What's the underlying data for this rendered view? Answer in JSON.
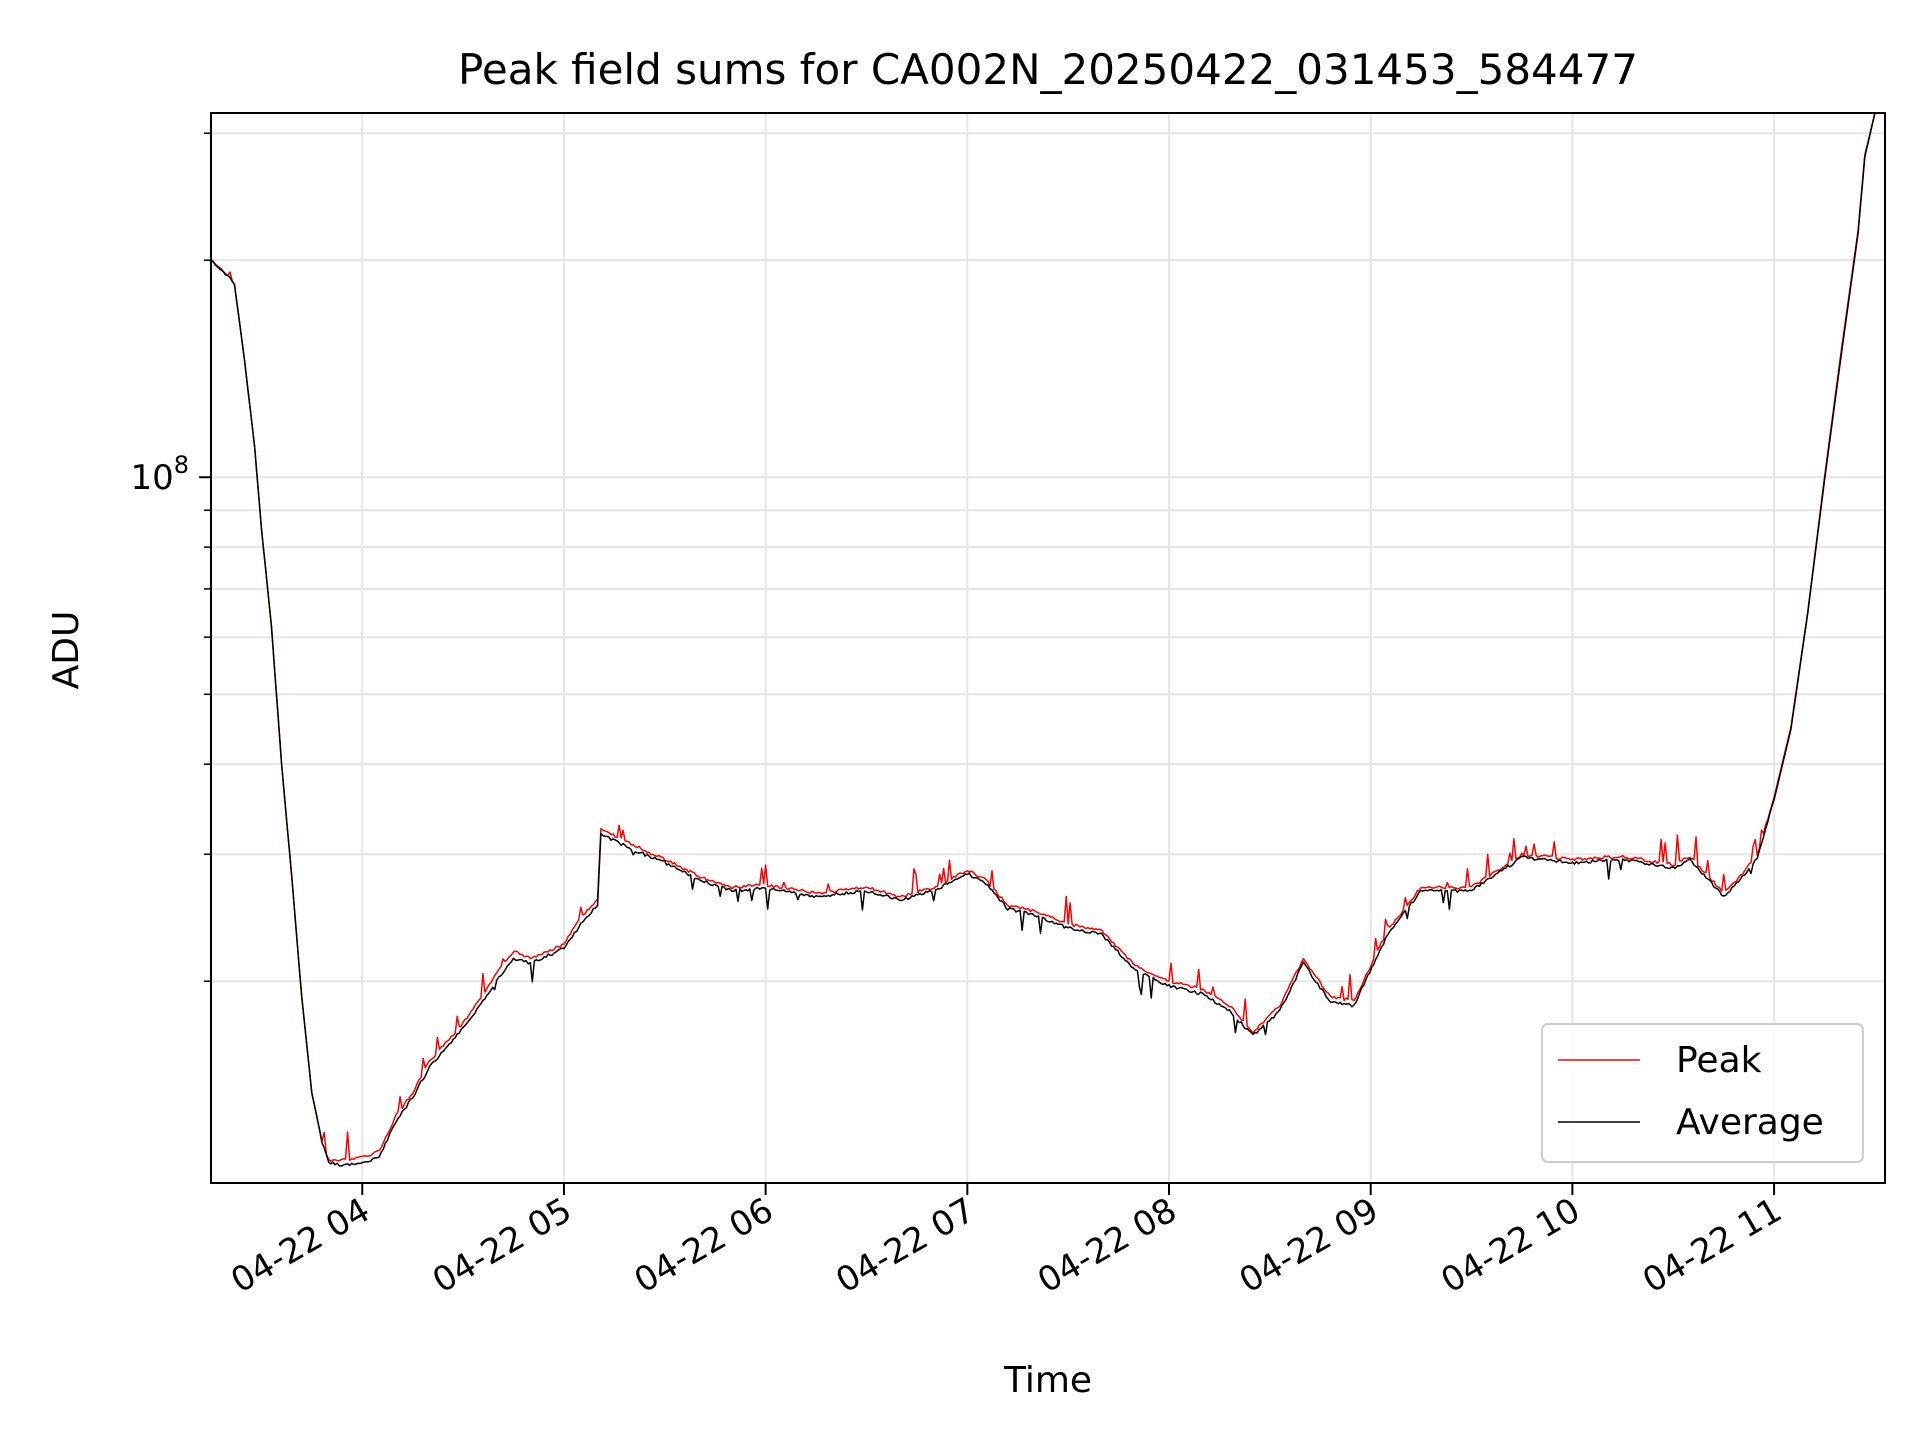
{
  "chart_data": {
    "type": "line",
    "title": "Peak field sums for CA002N_20250422_031453_584477",
    "xlabel": "Time",
    "ylabel": "ADU",
    "y_scale": "log",
    "grid": true,
    "grid_minor_y": true,
    "legend_position": "lower-right",
    "xlim": [
      "2025-04-22 03:15",
      "2025-04-22 11:33"
    ],
    "ylim": [
      10500000,
      320000000
    ],
    "x_ticks": [
      {
        "value": "2025-04-22 04:00",
        "label": "04-22 04"
      },
      {
        "value": "2025-04-22 05:00",
        "label": "04-22 05"
      },
      {
        "value": "2025-04-22 06:00",
        "label": "04-22 06"
      },
      {
        "value": "2025-04-22 07:00",
        "label": "04-22 07"
      },
      {
        "value": "2025-04-22 08:00",
        "label": "04-22 08"
      },
      {
        "value": "2025-04-22 09:00",
        "label": "04-22 09"
      },
      {
        "value": "2025-04-22 10:00",
        "label": "04-22 10"
      },
      {
        "value": "2025-04-22 11:00",
        "label": "04-22 11"
      }
    ],
    "y_ticks": [
      {
        "value": 100000000,
        "base": "10",
        "exp": "8"
      }
    ],
    "y_minor_ticks": [
      20000000,
      30000000,
      40000000,
      50000000,
      60000000,
      70000000,
      80000000,
      90000000,
      200000000,
      300000000
    ],
    "series": [
      {
        "name": "Peak",
        "color": "#ff0000",
        "spiky": true,
        "x": [
          "2025-04-22 03:15",
          "2025-04-22 03:20",
          "2025-04-22 03:22",
          "2025-04-22 03:25",
          "2025-04-22 03:28",
          "2025-04-22 03:30",
          "2025-04-22 03:33",
          "2025-04-22 03:36",
          "2025-04-22 03:39",
          "2025-04-22 03:42",
          "2025-04-22 03:45",
          "2025-04-22 03:48",
          "2025-04-22 03:50",
          "2025-04-22 03:55",
          "2025-04-22 04:00",
          "2025-04-22 04:05",
          "2025-04-22 04:10",
          "2025-04-22 04:15",
          "2025-04-22 04:20",
          "2025-04-22 04:30",
          "2025-04-22 04:40",
          "2025-04-22 04:45",
          "2025-04-22 04:50",
          "2025-04-22 05:00",
          "2025-04-22 05:05",
          "2025-04-22 05:10",
          "2025-04-22 05:11",
          "2025-04-22 05:20",
          "2025-04-22 05:30",
          "2025-04-22 05:40",
          "2025-04-22 05:50",
          "2025-04-22 06:00",
          "2025-04-22 06:15",
          "2025-04-22 06:30",
          "2025-04-22 06:40",
          "2025-04-22 06:50",
          "2025-04-22 07:00",
          "2025-04-22 07:05",
          "2025-04-22 07:12",
          "2025-04-22 07:20",
          "2025-04-22 07:30",
          "2025-04-22 07:40",
          "2025-04-22 07:50",
          "2025-04-22 08:00",
          "2025-04-22 08:10",
          "2025-04-22 08:18",
          "2025-04-22 08:25",
          "2025-04-22 08:33",
          "2025-04-22 08:40",
          "2025-04-22 08:48",
          "2025-04-22 08:55",
          "2025-04-22 09:05",
          "2025-04-22 09:15",
          "2025-04-22 09:30",
          "2025-04-22 09:45",
          "2025-04-22 10:00",
          "2025-04-22 10:15",
          "2025-04-22 10:30",
          "2025-04-22 10:35",
          "2025-04-22 10:45",
          "2025-04-22 10:50",
          "2025-04-22 10:55",
          "2025-04-22 11:00",
          "2025-04-22 11:05",
          "2025-04-22 11:10",
          "2025-04-22 11:15",
          "2025-04-22 11:20",
          "2025-04-22 11:25",
          "2025-04-22 11:27",
          "2025-04-22 11:30"
        ],
        "y": [
          200000000,
          190000000,
          185000000,
          145000000,
          110000000,
          85000000,
          62000000,
          40000000,
          28000000,
          19000000,
          14000000,
          12000000,
          11300000,
          11300000,
          11400000,
          11600000,
          13000000,
          14000000,
          15500000,
          17500000,
          20500000,
          22000000,
          21500000,
          22500000,
          24500000,
          26000000,
          32500000,
          31000000,
          29500000,
          28000000,
          27000000,
          27200000,
          26500000,
          27000000,
          26200000,
          27000000,
          28500000,
          27800000,
          25500000,
          25000000,
          24000000,
          23500000,
          21000000,
          20000000,
          19500000,
          18500000,
          17000000,
          18500000,
          21500000,
          19000000,
          18800000,
          23500000,
          27000000,
          27000000,
          30000000,
          29500000,
          29800000,
          29000000,
          29800000,
          26500000,
          28000000,
          30000000,
          36000000,
          45000000,
          65000000,
          100000000,
          150000000,
          220000000,
          280000000,
          320000000
        ]
      },
      {
        "name": "Average",
        "color": "#000000",
        "spiky": false,
        "x": [
          "2025-04-22 03:15",
          "2025-04-22 03:20",
          "2025-04-22 03:22",
          "2025-04-22 03:25",
          "2025-04-22 03:28",
          "2025-04-22 03:30",
          "2025-04-22 03:33",
          "2025-04-22 03:36",
          "2025-04-22 03:39",
          "2025-04-22 03:42",
          "2025-04-22 03:45",
          "2025-04-22 03:48",
          "2025-04-22 03:50",
          "2025-04-22 03:55",
          "2025-04-22 04:00",
          "2025-04-22 04:05",
          "2025-04-22 04:10",
          "2025-04-22 04:15",
          "2025-04-22 04:20",
          "2025-04-22 04:30",
          "2025-04-22 04:40",
          "2025-04-22 04:45",
          "2025-04-22 04:50",
          "2025-04-22 05:00",
          "2025-04-22 05:05",
          "2025-04-22 05:10",
          "2025-04-22 05:11",
          "2025-04-22 05:20",
          "2025-04-22 05:30",
          "2025-04-22 05:40",
          "2025-04-22 05:50",
          "2025-04-22 06:00",
          "2025-04-22 06:15",
          "2025-04-22 06:30",
          "2025-04-22 06:40",
          "2025-04-22 06:50",
          "2025-04-22 07:00",
          "2025-04-22 07:05",
          "2025-04-22 07:12",
          "2025-04-22 07:20",
          "2025-04-22 07:30",
          "2025-04-22 07:40",
          "2025-04-22 07:50",
          "2025-04-22 08:00",
          "2025-04-22 08:10",
          "2025-04-22 08:18",
          "2025-04-22 08:25",
          "2025-04-22 08:33",
          "2025-04-22 08:40",
          "2025-04-22 08:48",
          "2025-04-22 08:55",
          "2025-04-22 09:05",
          "2025-04-22 09:15",
          "2025-04-22 09:30",
          "2025-04-22 09:45",
          "2025-04-22 10:00",
          "2025-04-22 10:15",
          "2025-04-22 10:30",
          "2025-04-22 10:35",
          "2025-04-22 10:45",
          "2025-04-22 10:50",
          "2025-04-22 10:55",
          "2025-04-22 11:00",
          "2025-04-22 11:05",
          "2025-04-22 11:10",
          "2025-04-22 11:15",
          "2025-04-22 11:20",
          "2025-04-22 11:25",
          "2025-04-22 11:27",
          "2025-04-22 11:30"
        ],
        "y": [
          200000000,
          190000000,
          185000000,
          145000000,
          110000000,
          85000000,
          62000000,
          40000000,
          28000000,
          19000000,
          14000000,
          12000000,
          11200000,
          11100000,
          11200000,
          11400000,
          12800000,
          13800000,
          15200000,
          17200000,
          20000000,
          21500000,
          21200000,
          22200000,
          24000000,
          25500000,
          32000000,
          30500000,
          29200000,
          27700000,
          26700000,
          26900000,
          26200000,
          26700000,
          25900000,
          26700000,
          28200000,
          27500000,
          25200000,
          24700000,
          23700000,
          23200000,
          20700000,
          19700000,
          19200000,
          18200000,
          16800000,
          18200000,
          21200000,
          18700000,
          18500000,
          23200000,
          26700000,
          26700000,
          29700000,
          29200000,
          29500000,
          28700000,
          29500000,
          26200000,
          27700000,
          29700000,
          35700000,
          44700000,
          64700000,
          99000000,
          148000000,
          218000000,
          278000000,
          320000000
        ]
      }
    ]
  }
}
